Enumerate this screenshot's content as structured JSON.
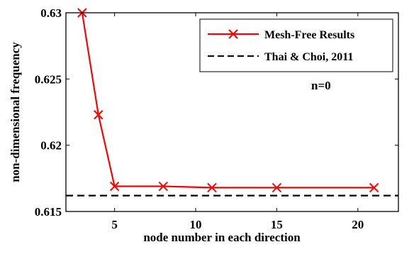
{
  "chart_data": {
    "type": "line",
    "xlabel": "node number in each direction",
    "ylabel": "non-dimensional frequency",
    "xlim": [
      2,
      22.5
    ],
    "ylim": [
      0.615,
      0.63
    ],
    "xticks": [
      5,
      10,
      15,
      20
    ],
    "yticks": [
      0.615,
      0.62,
      0.625,
      0.63
    ],
    "ytick_labels": [
      "0.615",
      "0.62",
      "0.625",
      "0.63"
    ],
    "grid": false,
    "legend_position": "top-right",
    "annotation": "n=0",
    "series": [
      {
        "name": "Mesh-Free Results",
        "style": "solid-with-x-markers",
        "color": "#ff0000",
        "x": [
          3,
          4,
          5,
          8,
          11,
          15,
          21
        ],
        "y": [
          0.63,
          0.6223,
          0.6169,
          0.6169,
          0.6168,
          0.6168,
          0.6168
        ]
      },
      {
        "name": "Thai & Choi, 2011",
        "style": "dashed",
        "color": "#000000",
        "x": [
          2,
          22.5
        ],
        "y": [
          0.6162,
          0.6162
        ]
      }
    ]
  }
}
